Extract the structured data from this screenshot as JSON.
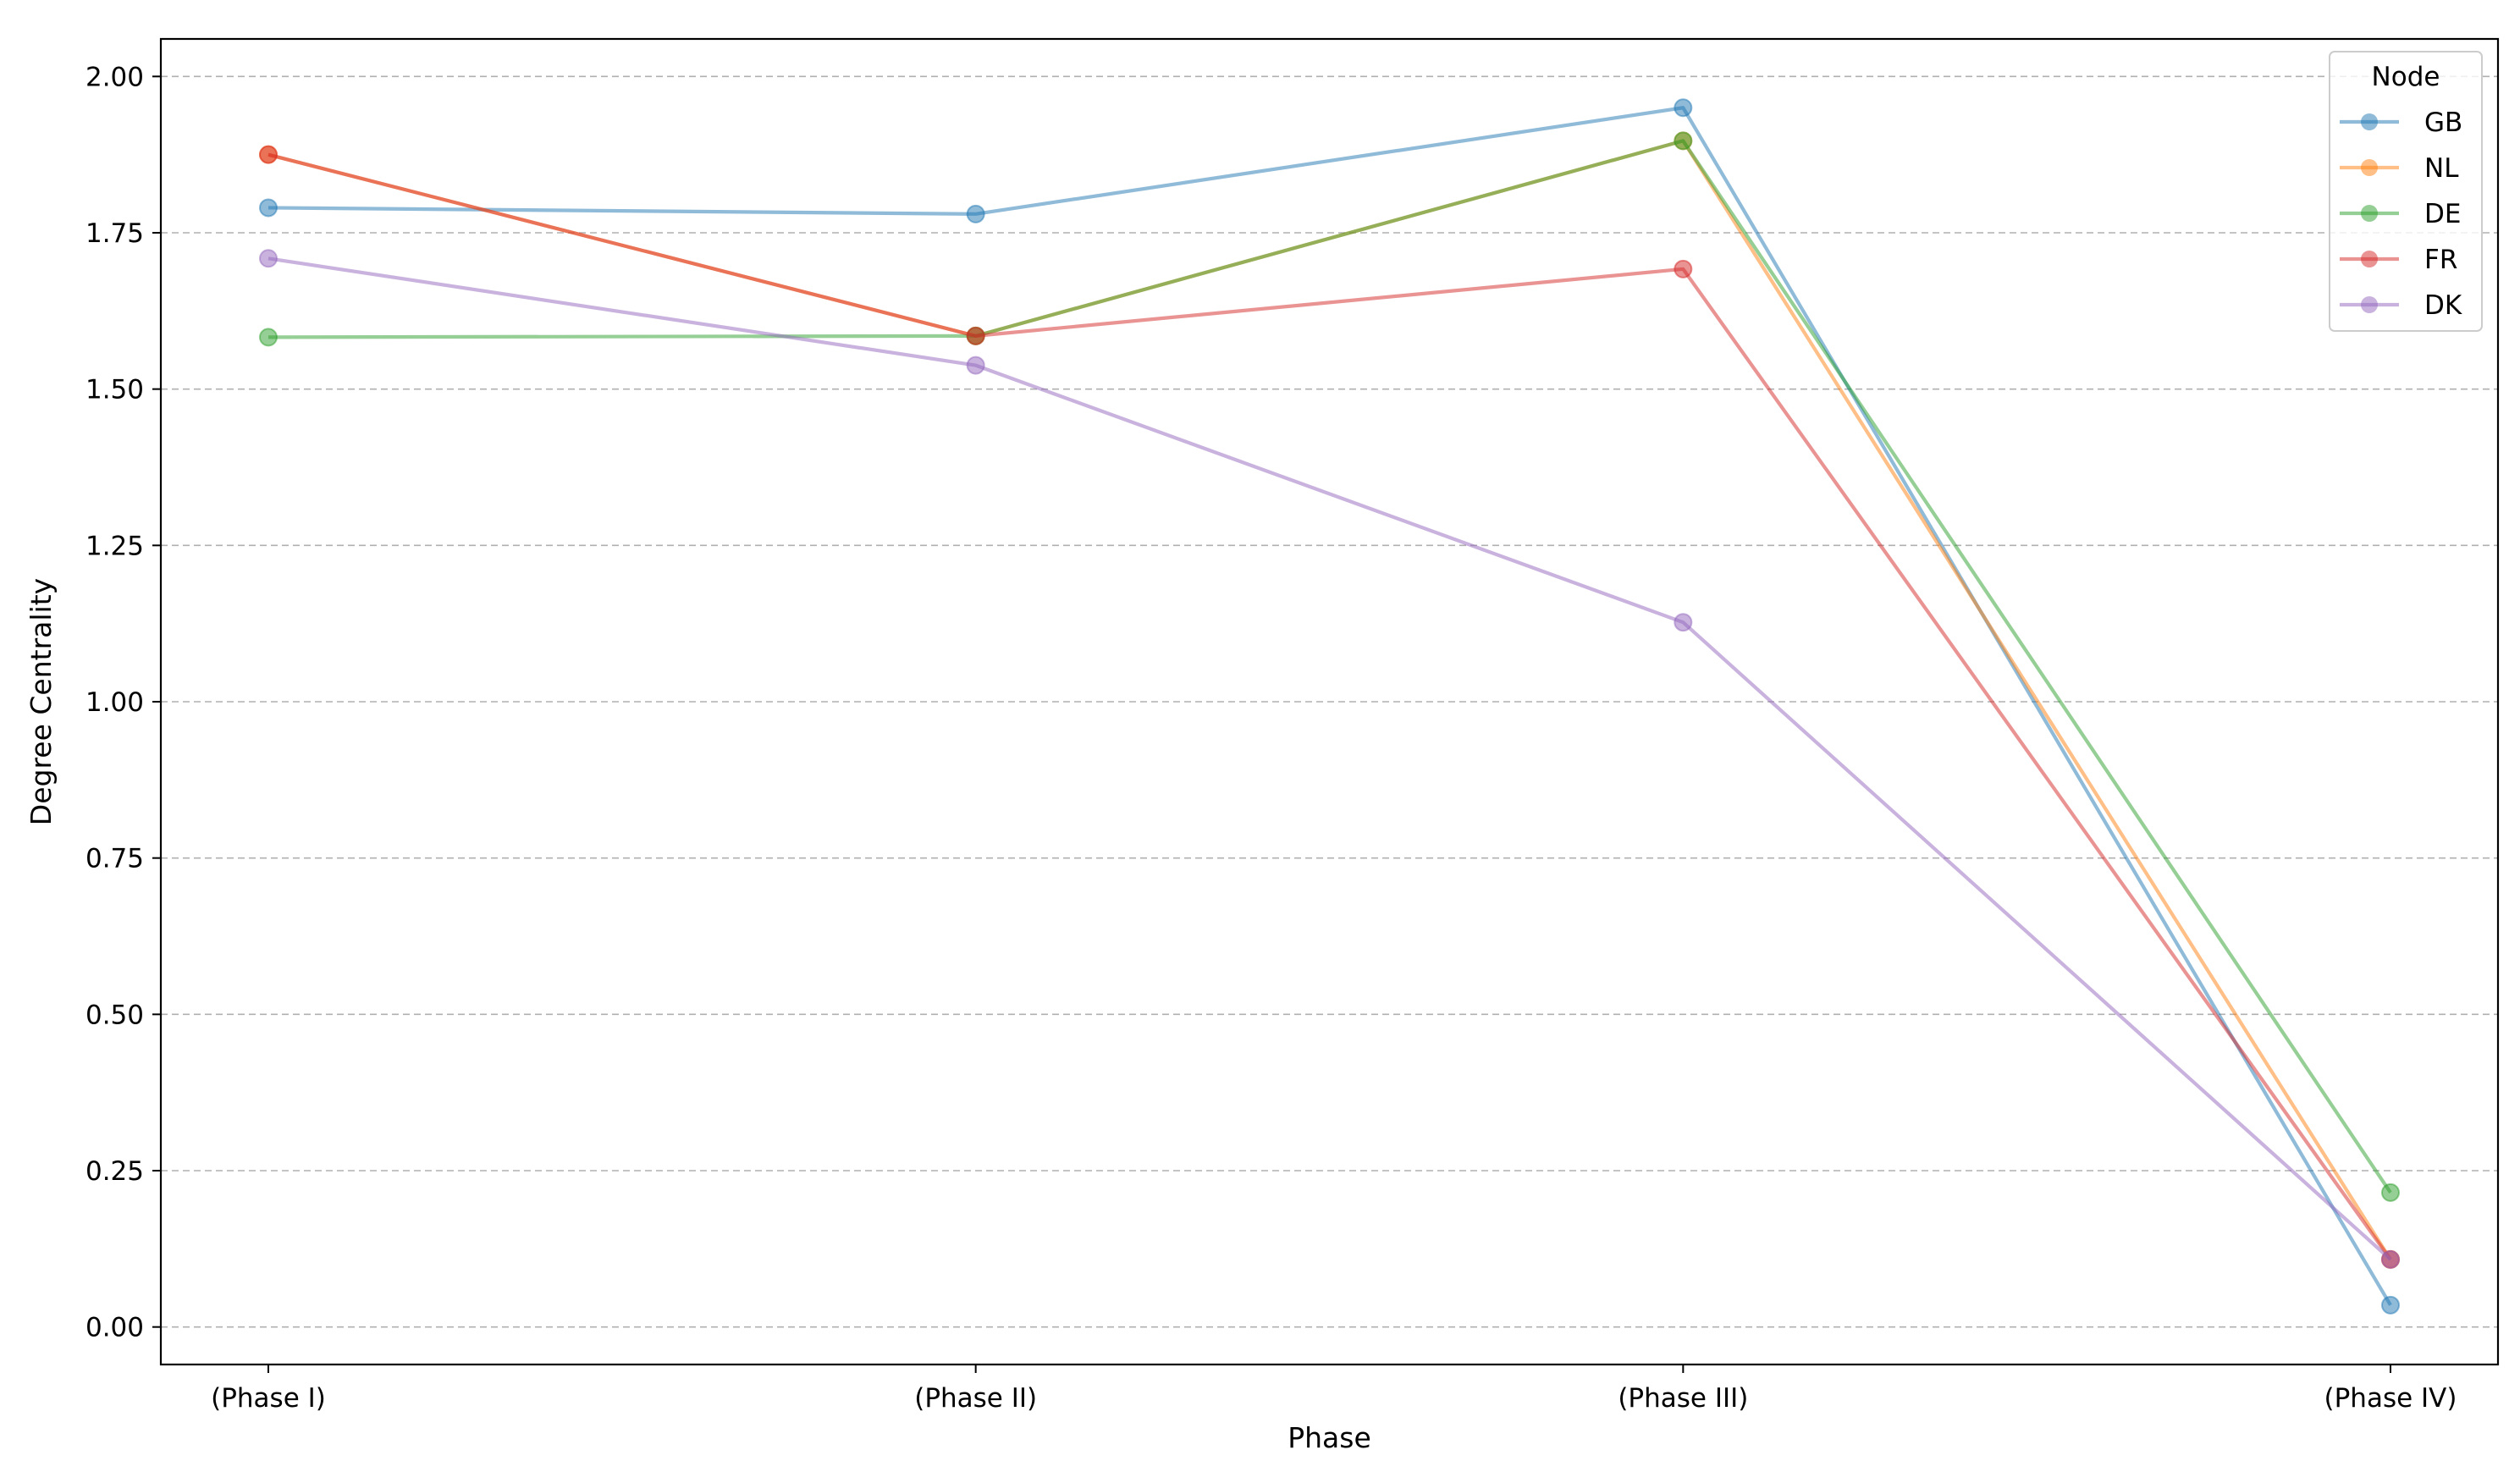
{
  "chart_data": {
    "type": "line",
    "title": "",
    "xlabel": "Phase",
    "ylabel": "Degree Centrality",
    "categories": [
      "(Phase I)",
      "(Phase II)",
      "(Phase III)",
      "(Phase IV)"
    ],
    "ylim": [
      -0.06,
      2.06
    ],
    "yticks": [
      "0.00",
      "0.25",
      "0.50",
      "0.75",
      "1.00",
      "1.25",
      "1.50",
      "1.75",
      "2.00"
    ],
    "grid": "horizontal dashed",
    "legend": {
      "title": "Node",
      "placement": "top-right"
    },
    "series": [
      {
        "name": "GB",
        "color": "#1f77b4",
        "values": [
          1.79,
          1.78,
          1.95,
          0.035
        ]
      },
      {
        "name": "NL",
        "color": "#ff7f0e",
        "values": [
          1.875,
          1.585,
          1.897,
          0.108
        ]
      },
      {
        "name": "DE",
        "color": "#2ca02c",
        "values": [
          1.583,
          1.585,
          1.897,
          0.215
        ]
      },
      {
        "name": "FR",
        "color": "#d62728",
        "values": [
          1.875,
          1.585,
          1.692,
          0.108
        ]
      },
      {
        "name": "DK",
        "color": "#9467bd",
        "values": [
          1.709,
          1.538,
          1.127,
          0.108
        ]
      }
    ]
  }
}
